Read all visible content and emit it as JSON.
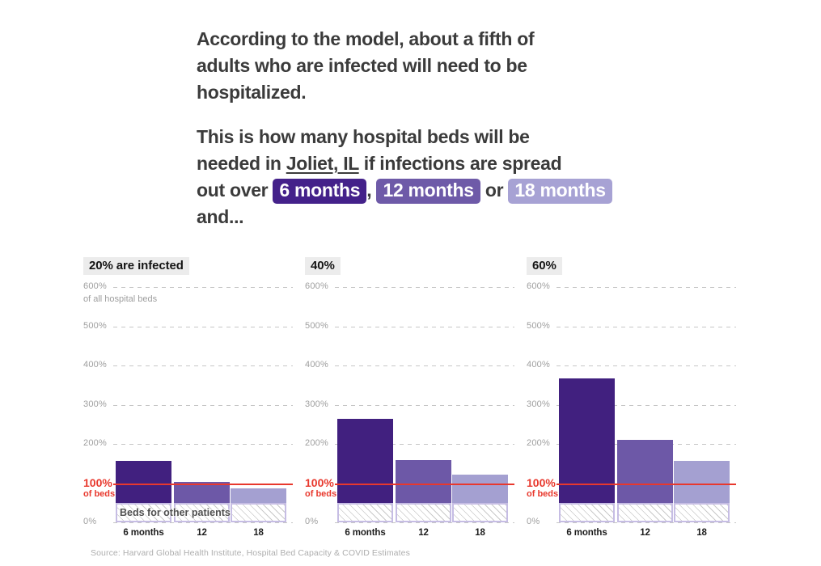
{
  "intro": {
    "para1": "According to the model, about a fifth of\nadults who are infected will need to be\nhospitalized.",
    "para2": {
      "before": "This is how many hospital beds will be\nneeded in ",
      "location": "Joliet, IL",
      "mid": " if infections are spread\nout over ",
      "chip_6": "6 months",
      "sep1": ", ",
      "chip_12": "12 months",
      "sep2": " or ",
      "chip_18": "18 months",
      "after": "\nand..."
    }
  },
  "chart_data": {
    "type": "bar",
    "categories": [
      "6 months",
      "12",
      "18"
    ],
    "ylabel": "% of all hospital beds",
    "ylim": [
      0,
      620
    ],
    "yticks": [
      600,
      500,
      400,
      300,
      200
    ],
    "grid": "dashed-horizontal",
    "zero_label": "0%",
    "y600_sublabel": "of all hospital beds",
    "capacity_line": {
      "value": 100,
      "label_top": "100%",
      "label_sub": "of beds"
    },
    "other_patients": {
      "value": 50,
      "label": "Beds for other patients"
    },
    "series_colors": [
      "#41207f",
      "#6d58a7",
      "#a4a0d1"
    ],
    "charts": [
      {
        "title": "20% are infected",
        "values": [
          157,
          104,
          86
        ]
      },
      {
        "title": "40%",
        "values": [
          263,
          158,
          122
        ]
      },
      {
        "title": "60%",
        "values": [
          366,
          211,
          157
        ]
      }
    ]
  },
  "source": "Source: Harvard Global Health Institute, Hospital Bed Capacity & COVID Estimates",
  "colors": {
    "text": "#3b3b3b",
    "chip_dark": "#44218a",
    "chip_mid": "#6e5aa8",
    "chip_light": "#a7a2d4",
    "header_chip_bg": "#ececec",
    "capacity_red": "#e8382d",
    "grid_gray": "#c6c6c6",
    "axis_gray": "#9e9e9e",
    "hatch_border": "#c6bde4",
    "hatch_stripe": "#c9c9c9",
    "source_gray": "#aeaeae"
  }
}
